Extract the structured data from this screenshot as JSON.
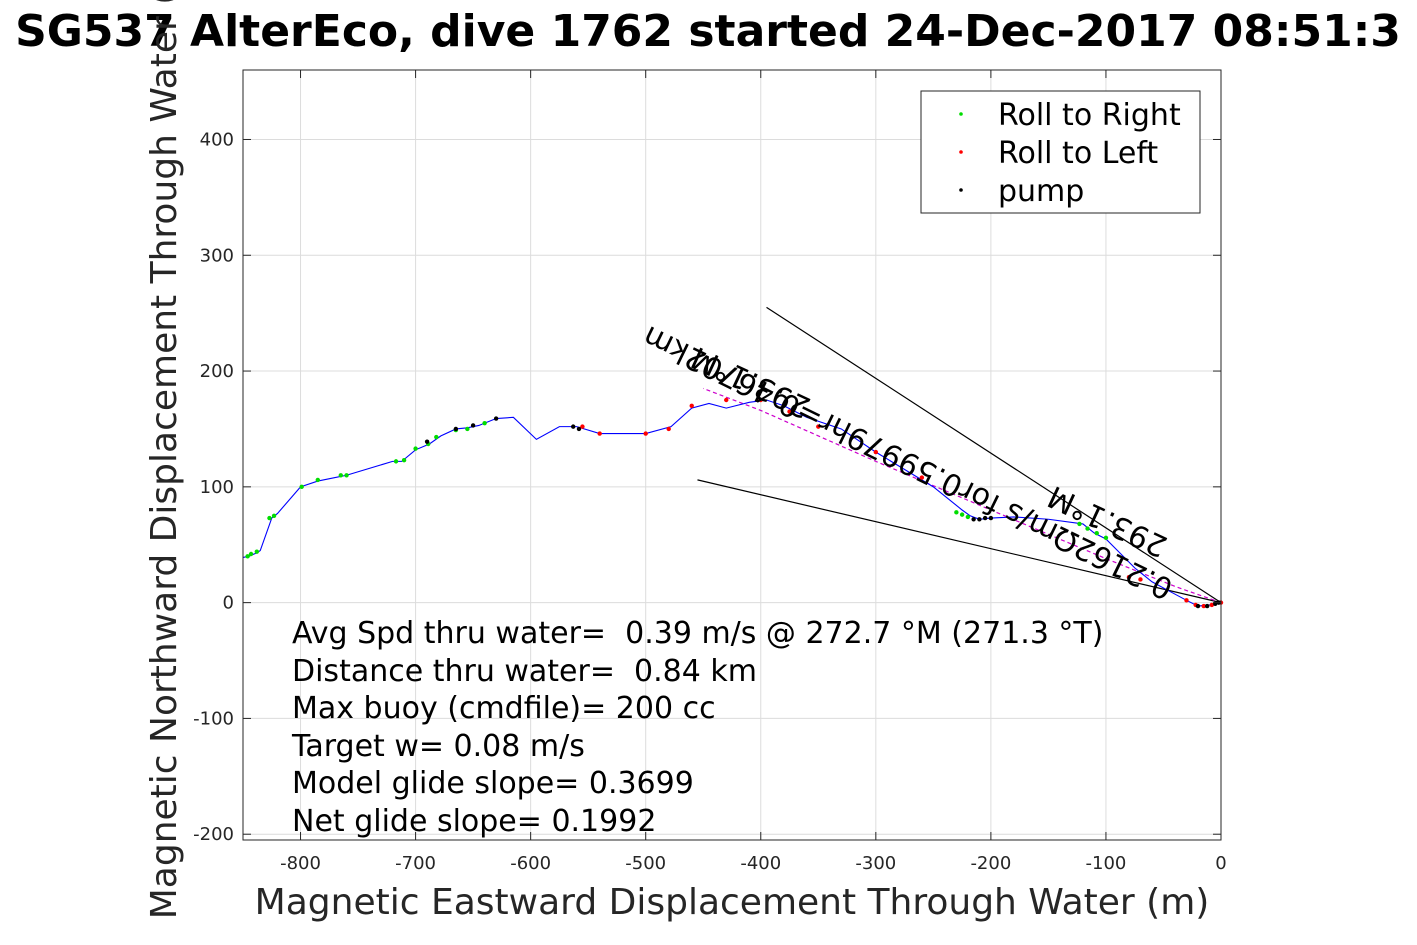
{
  "chart_data": {
    "type": "scatter",
    "title": "SG537 AlterEco, dive 1762 started 24-Dec-2017 08:51:3",
    "xlabel": "Magnetic Eastward Displacement Through Water (m)",
    "ylabel": "Magnetic Northward Displacement Through Water (",
    "xlim": [
      -850,
      0
    ],
    "ylim": [
      -205,
      460
    ],
    "xticks": [
      -800,
      -700,
      -600,
      -500,
      -400,
      -300,
      -200,
      -100,
      0
    ],
    "yticks": [
      -200,
      -100,
      0,
      100,
      200,
      300,
      400
    ],
    "grid": true,
    "legend_position": "top-right",
    "colors": {
      "track": "#0000ff",
      "roll_right": "#00dd00",
      "roll_left": "#ff0000",
      "pump": "#000000",
      "grid": "#dcdcdc",
      "axes": "#262626"
    },
    "track": {
      "x": [
        0,
        -10,
        -20,
        -30,
        -45,
        -60,
        -75,
        -90,
        -100,
        -110,
        -120,
        -150,
        -180,
        -200,
        -210,
        -218,
        -225,
        -250,
        -280,
        -300,
        -330,
        -360,
        -380,
        -395,
        -410,
        -430,
        -445,
        -460,
        -478,
        -500,
        -520,
        -540,
        -560,
        -575,
        -595,
        -615,
        -630,
        -645,
        -655,
        -665,
        -678,
        -688,
        -700,
        -712,
        -720,
        -760,
        -770,
        -785,
        -800,
        -820,
        -825,
        -835,
        -838,
        -845,
        -850
      ],
      "y": [
        0,
        -2,
        -3,
        2,
        10,
        18,
        30,
        45,
        55,
        60,
        68,
        72,
        74,
        73,
        72,
        75,
        80,
        100,
        118,
        130,
        150,
        160,
        170,
        175,
        173,
        168,
        172,
        168,
        152,
        146,
        146,
        146,
        152,
        152,
        141,
        160,
        159,
        153,
        151,
        150,
        144,
        137,
        132,
        122,
        122,
        110,
        108,
        105,
        100,
        77,
        73,
        45,
        43,
        40,
        39
      ]
    },
    "series": [
      {
        "name": "Roll to Right",
        "x": [
          -100,
          -108,
          -116,
          -123,
          -220,
          -225,
          -230,
          -640,
          -655,
          -665,
          -682,
          -689,
          -700,
          -710,
          -717,
          -760,
          -765,
          -785,
          -799,
          -823,
          -827,
          -838,
          -843,
          -846
        ],
        "y": [
          56,
          60,
          64,
          68,
          74,
          76,
          78,
          155,
          150,
          149,
          143,
          137,
          133,
          123,
          122,
          110,
          110,
          106,
          100,
          75,
          73,
          44,
          42,
          40
        ]
      },
      {
        "name": "Roll to Left",
        "x": [
          0,
          -8,
          -15,
          -22,
          -30,
          -70,
          -80,
          -260,
          -300,
          -350,
          -375,
          -400,
          -430,
          -460,
          -480,
          -500,
          -540,
          -555
        ],
        "y": [
          0,
          -2,
          -3,
          -2,
          2,
          20,
          22,
          108,
          130,
          152,
          165,
          175,
          175,
          170,
          150,
          146,
          146,
          152
        ],
        "style": "marker-only"
      },
      {
        "name": "pump",
        "x": [
          -2,
          -5,
          -12,
          -20,
          -200,
          -205,
          -210,
          -215,
          -558,
          -563,
          -630,
          -650,
          -665,
          -690
        ],
        "y": [
          0,
          -1,
          -3,
          -3,
          73,
          73,
          72,
          72,
          150,
          152,
          159,
          153,
          150,
          139
        ]
      }
    ],
    "magenta_track": {
      "color": "#cc00cc",
      "x": [
        0,
        -40,
        -100,
        -200,
        -300,
        -400,
        -450
      ],
      "y": [
        0,
        14,
        38,
        80,
        122,
        166,
        185
      ]
    },
    "wedge_lines": [
      {
        "x": [
          0,
          -395
        ],
        "y": [
          0,
          255
        ]
      },
      {
        "x": [
          0,
          -455
        ],
        "y": [
          0,
          106
        ]
      }
    ],
    "rotated_labels": [
      {
        "text": "0.2162Ωm/s for0.59979hr=0.46702km",
        "x": -40,
        "y": 18
      },
      {
        "text": "293.1°M",
        "x": -45,
        "y": 55
      },
      {
        "text": "293.1°M",
        "x": -355,
        "y": 175
      }
    ],
    "annotations": [
      "Avg Spd thru water=  0.39 m/s @ 272.7 °M (271.3 °T)",
      "Distance thru water=  0.84 km",
      "Max buoy (cmdfile)= 200 cc",
      "Target w= 0.08 m/s",
      "Model glide slope= 0.3699",
      "Net glide slope= 0.1992"
    ]
  }
}
